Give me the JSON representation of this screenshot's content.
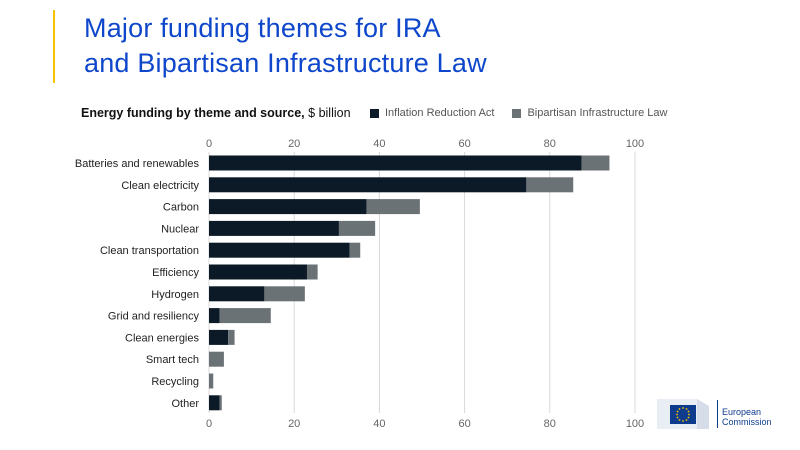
{
  "header": {
    "title_line1": "Major funding themes for IRA",
    "title_line2": "and Bipartisan Infrastructure Law"
  },
  "colors": {
    "ira": "#0b1a26",
    "bil": "#6b7276",
    "title": "#0e47cb",
    "accent": "#f5c400",
    "grid": "#d9d9d9"
  },
  "logo": {
    "line1": "European",
    "line2": "Commission"
  },
  "chart_data": {
    "type": "bar",
    "orientation": "horizontal",
    "stacked": true,
    "title": "Energy funding by theme and source,",
    "title_unit": "$ billion",
    "categories": [
      "Batteries and renewables",
      "Clean electricity",
      "Carbon",
      "Nuclear",
      "Clean transportation",
      "Efficiency",
      "Hydrogen",
      "Grid and resiliency",
      "Clean energies",
      "Smart tech",
      "Recycling",
      "Other"
    ],
    "series": [
      {
        "name": "Inflation Reduction Act",
        "values": [
          87.5,
          74.5,
          37.0,
          30.5,
          33.0,
          23.0,
          13.0,
          2.5,
          4.5,
          0,
          0,
          2.5
        ]
      },
      {
        "name": "Bipartisan Infrastructure Law",
        "values": [
          6.5,
          11.0,
          12.5,
          8.5,
          2.5,
          2.5,
          9.5,
          12.0,
          1.5,
          3.5,
          1.0,
          0.5
        ]
      }
    ],
    "xlim": [
      0,
      100
    ],
    "xticks": [
      "0",
      "20",
      "40",
      "60",
      "80",
      "100"
    ],
    "grid": true,
    "legend_position": "top-right"
  }
}
